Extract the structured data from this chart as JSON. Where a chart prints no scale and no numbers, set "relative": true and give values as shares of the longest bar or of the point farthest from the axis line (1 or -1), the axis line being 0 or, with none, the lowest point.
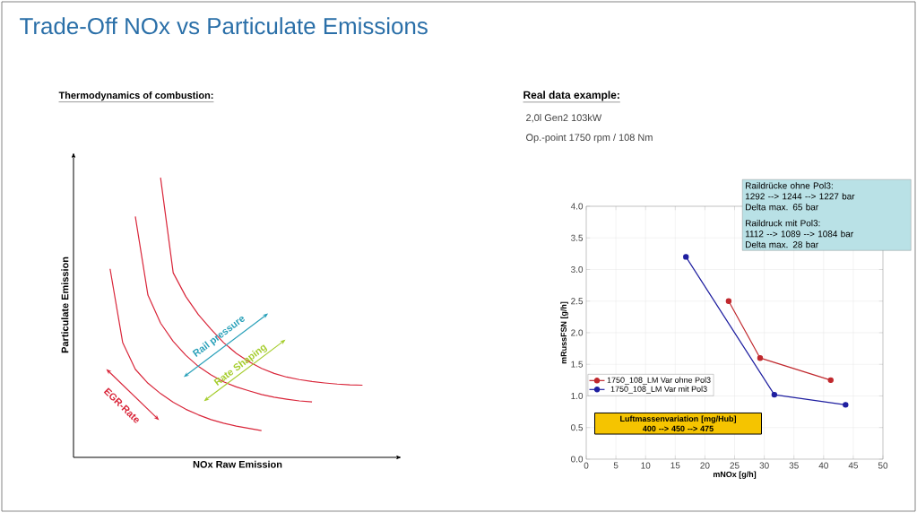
{
  "chart_data": [
    {
      "type": "line",
      "title": "Trade-Off NOx vs Particulate Emissions",
      "subtitle": "Thermodynamics of combustion:",
      "xlabel": "NOx Raw Emission",
      "ylabel": "Particulate Emission",
      "relative": true,
      "marker": "none",
      "legend": false,
      "categories": [
        null,
        null,
        null,
        null,
        null,
        null,
        null,
        null,
        null,
        null,
        null,
        null,
        null,
        null,
        null,
        null,
        null,
        null,
        null,
        null,
        null
      ],
      "series": [
        {
          "color": "#d9263a",
          "values": [
            0.674,
            0.41,
            0.315,
            0.265,
            0.228,
            0.197,
            0.172,
            0.152,
            0.135,
            0.122,
            0.112,
            0.104,
            0.096,
            null,
            null,
            null,
            null,
            null,
            null,
            null,
            null
          ]
        },
        {
          "color": "#d9263a",
          "values": [
            null,
            null,
            0.861,
            0.58,
            0.48,
            0.415,
            0.365,
            0.325,
            0.295,
            0.27,
            0.252,
            0.238,
            0.225,
            0.215,
            0.208,
            0.202,
            0.198,
            null,
            null,
            null,
            null
          ]
        },
        {
          "color": "#d9263a",
          "values": [
            null,
            null,
            null,
            null,
            1,
            0.66,
            0.575,
            0.51,
            0.458,
            0.41,
            0.372,
            0.342,
            0.318,
            0.3,
            0.287,
            0.278,
            0.271,
            0.266,
            0.262,
            0.259,
            0.258
          ]
        }
      ],
      "annotations": [
        "Rail pressure",
        "Rate Shaping",
        "EGR-Rate"
      ]
    },
    {
      "type": "line",
      "title": "Real data example:",
      "subtitle": "2,0l Gen2 103kW",
      "xlabel": "mNOx [g/h]",
      "ylabel": "mRussFSN [g/h]",
      "xlim": [
        0,
        50
      ],
      "ylim": [
        0,
        4.0
      ],
      "xticks": [
        0,
        5,
        10,
        15,
        20,
        25,
        30,
        35,
        40,
        45,
        50
      ],
      "yticks": [
        {
          "value": 0,
          "label": "0.0"
        },
        {
          "value": 0.5,
          "label": "0.5"
        },
        {
          "value": 1,
          "label": "1.0"
        },
        {
          "value": 1.5,
          "label": "1.5"
        },
        {
          "value": 2,
          "label": "2.0"
        },
        {
          "value": 2.5,
          "label": "2.5"
        },
        {
          "value": 3,
          "label": "3.0"
        },
        {
          "value": 3.5,
          "label": "3.5"
        },
        {
          "value": 4,
          "label": "4.0"
        }
      ],
      "grid": true,
      "marker": "circle",
      "legend": "bottom left",
      "series": [
        {
          "name": "1750_108_LM Var ohne Pol3",
          "color": "#c0282d",
          "x": [
            24,
            29.3,
            41.2
          ],
          "values": [
            2.5,
            1.6,
            1.25
          ]
        },
        {
          "name": "1750_108_LM Var mit Pol3",
          "color": "#1f1fa0",
          "x": [
            16.8,
            31.7,
            43.7
          ],
          "values": [
            3.2,
            1.02,
            0.86
          ]
        }
      ],
      "annotations": [
        "Op.-point 1750 rpm / 108 Nm",
        "Raildrücke ohne Pol3:",
        "1292 --> 1244 --> 1227 bar",
        "Delta max. 65 bar",
        "Raildruck mit Pol3:",
        "1112 --> 1089 --> 1084 bar",
        "Delta max.  28 bar",
        "Luftmassenvariation [mg/Hub]",
        "400 --> 450 --> 475"
      ]
    }
  ]
}
